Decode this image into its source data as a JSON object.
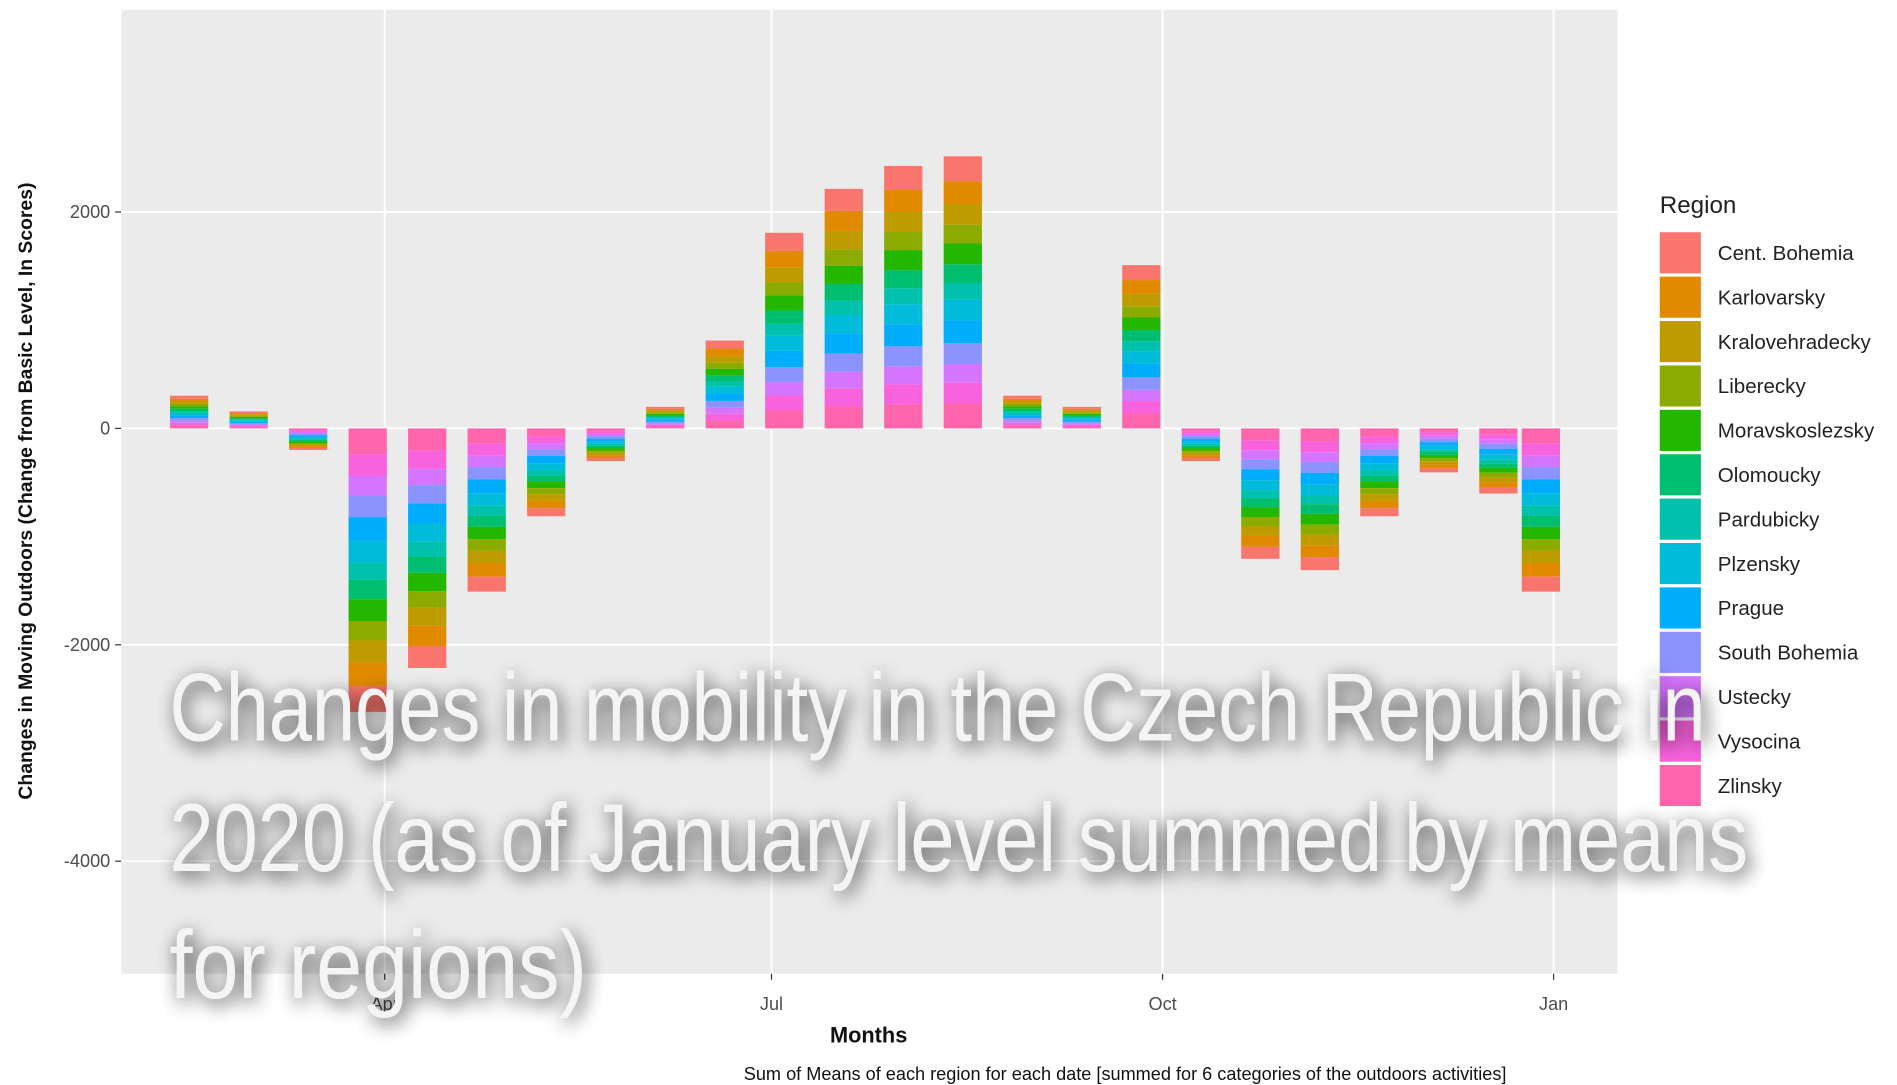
{
  "chart_data": {
    "type": "stacked_bar",
    "y_label": "Changes in Moving Outdoors (Change from Basic Level, In Scores)",
    "x_label": "Months",
    "caption": "Sum of Means of each region for each date [summed for 6 categories of the outdoors activities]",
    "legend_title": "Region",
    "overlay_title": [
      "Changes in mobility in the Czech Republic in",
      "2020 (as of January level summed by means",
      "for regions)"
    ],
    "x": [
      46,
      60,
      74,
      88,
      102,
      116,
      130,
      144,
      158,
      172,
      186,
      200,
      214,
      228,
      242,
      256,
      270,
      284,
      298,
      312,
      326,
      340,
      354,
      364
    ],
    "xlim": [
      30,
      382
    ],
    "xticks": [
      {
        "value": 92,
        "label": "Apr"
      },
      {
        "value": 183,
        "label": "Jul"
      },
      {
        "value": 275,
        "label": "Oct"
      },
      {
        "value": 367,
        "label": "Jan"
      }
    ],
    "ylim": [
      -5040,
      3870
    ],
    "yticks": [
      -4000,
      -2000,
      0,
      2000
    ],
    "grid": true,
    "legend": "right",
    "series": [
      {
        "name": "Cent. Bohemia",
        "color": "#F8766D",
        "values": [
          28,
          14,
          -18,
          -240,
          -203,
          -138,
          -74,
          -28,
          18,
          74,
          166,
          203,
          222,
          230,
          28,
          18,
          138,
          -28,
          -110,
          -120,
          -74,
          -37,
          -55,
          -138
        ]
      },
      {
        "name": "Karlovarsky",
        "color": "#E18A00",
        "values": [
          25,
          13,
          -17,
          -220,
          -186,
          -127,
          -68,
          -25,
          17,
          68,
          152,
          186,
          204,
          211,
          25,
          17,
          127,
          -25,
          -101,
          -110,
          -68,
          -34,
          -51,
          -127
        ]
      },
      {
        "name": "Kralovehradecky",
        "color": "#BE9C00",
        "values": [
          23,
          12,
          -15,
          -200,
          -169,
          -115,
          -62,
          -23,
          15,
          62,
          138,
          169,
          185,
          192,
          23,
          15,
          115,
          -23,
          -92,
          -100,
          -62,
          -31,
          -46,
          -115
        ]
      },
      {
        "name": "Liberecky",
        "color": "#8CAB00",
        "values": [
          21,
          11,
          -14,
          -180,
          -152,
          -104,
          -56,
          -21,
          14,
          56,
          124,
          152,
          167,
          173,
          21,
          14,
          104,
          -21,
          -83,
          -90,
          -56,
          -28,
          -41,
          -104
        ]
      },
      {
        "name": "Moravskoslezsky",
        "color": "#24B700",
        "values": [
          23,
          12,
          -15,
          -200,
          -169,
          -115,
          -62,
          -23,
          15,
          62,
          138,
          169,
          185,
          192,
          23,
          15,
          115,
          -23,
          -92,
          -100,
          -62,
          -31,
          -46,
          -115
        ]
      },
      {
        "name": "Olomoucky",
        "color": "#00BE70",
        "values": [
          21,
          11,
          -14,
          -180,
          -152,
          -104,
          -56,
          -21,
          14,
          56,
          124,
          152,
          167,
          173,
          21,
          14,
          104,
          -21,
          -83,
          -90,
          -56,
          -28,
          -41,
          -104
        ]
      },
      {
        "name": "Pardubicky",
        "color": "#00C1AB",
        "values": [
          18,
          10,
          -12,
          -160,
          -135,
          -92,
          -50,
          -18,
          12,
          50,
          110,
          135,
          148,
          154,
          18,
          12,
          92,
          -18,
          -74,
          -80,
          -50,
          -25,
          -37,
          -92
        ]
      },
      {
        "name": "Plzensky",
        "color": "#00BBDA",
        "values": [
          23,
          12,
          -15,
          -200,
          -169,
          -115,
          -62,
          -23,
          15,
          62,
          138,
          169,
          185,
          192,
          23,
          15,
          115,
          -23,
          -92,
          -100,
          -62,
          -31,
          -46,
          -115
        ]
      },
      {
        "name": "Prague",
        "color": "#00ACFC",
        "values": [
          25,
          13,
          -17,
          -220,
          -186,
          -127,
          -68,
          -25,
          17,
          68,
          152,
          186,
          204,
          211,
          25,
          17,
          127,
          -25,
          -101,
          -110,
          -68,
          -34,
          -51,
          -127
        ]
      },
      {
        "name": "South Bohemia",
        "color": "#8B93FF",
        "values": [
          23,
          12,
          -15,
          -200,
          -169,
          -115,
          -62,
          -23,
          15,
          62,
          138,
          169,
          185,
          192,
          23,
          15,
          115,
          -23,
          -92,
          -100,
          -62,
          -31,
          -46,
          -115
        ]
      },
      {
        "name": "Ustecky",
        "color": "#D575FE",
        "values": [
          21,
          11,
          -14,
          -180,
          -152,
          -104,
          -56,
          -21,
          14,
          56,
          124,
          152,
          167,
          173,
          21,
          14,
          104,
          -21,
          -83,
          -90,
          -56,
          -28,
          -41,
          -104
        ]
      },
      {
        "name": "Vysocina",
        "color": "#F962DD",
        "values": [
          23,
          12,
          -15,
          -200,
          -169,
          -115,
          -62,
          -23,
          15,
          62,
          138,
          169,
          185,
          192,
          23,
          15,
          115,
          -23,
          -92,
          -100,
          -62,
          -31,
          -46,
          -115
        ]
      },
      {
        "name": "Zlinsky",
        "color": "#FF65AC",
        "values": [
          28,
          14,
          -18,
          -240,
          -203,
          -138,
          -74,
          -28,
          18,
          74,
          166,
          203,
          222,
          230,
          28,
          18,
          138,
          -28,
          -110,
          -120,
          -74,
          -37,
          -55,
          -138
        ]
      }
    ]
  }
}
